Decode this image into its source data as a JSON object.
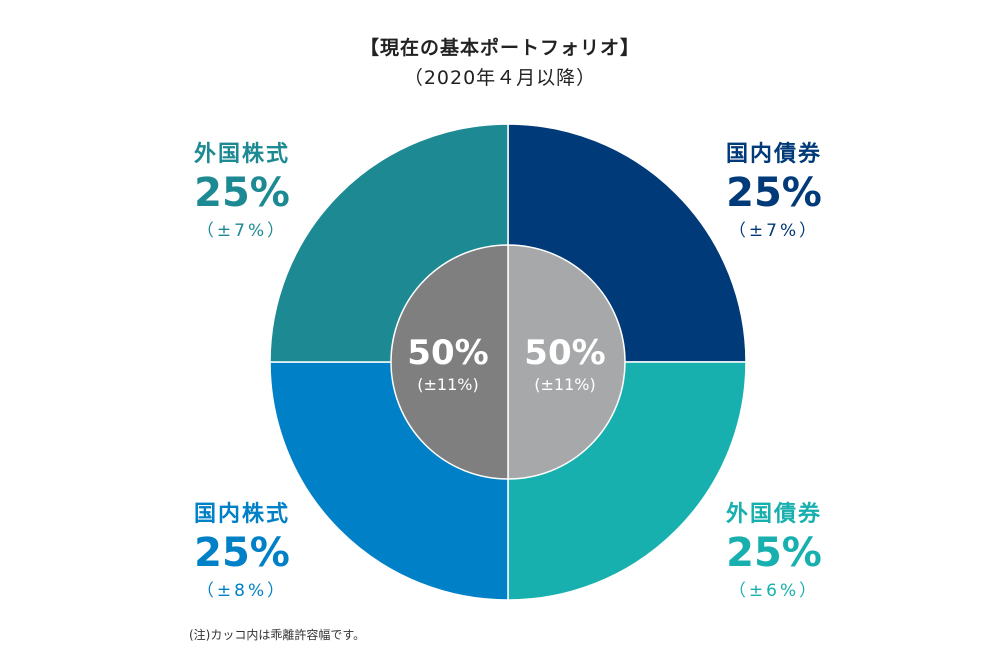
{
  "title": "【現在の基本ポートフォリオ】",
  "subtitle": "（2020年４月以降）",
  "note": "(注)カッコ内は乖離許容幅です。",
  "chart_data": {
    "type": "pie",
    "outer_ring": [
      {
        "name": "国内債券",
        "value": 25,
        "label": "25%",
        "range": "（±7%）",
        "color": "#003a78"
      },
      {
        "name": "外国債券",
        "value": 25,
        "label": "25%",
        "range": "（±6%）",
        "color": "#17b0ae"
      },
      {
        "name": "国内株式",
        "value": 25,
        "label": "25%",
        "range": "（±8%）",
        "color": "#0080c6"
      },
      {
        "name": "外国株式",
        "value": 25,
        "label": "25%",
        "range": "（±7%）",
        "color": "#1d8a93"
      }
    ],
    "inner_circle": [
      {
        "value": 50,
        "label": "50%",
        "range": "(±11%)",
        "color": "#a7a8aa"
      },
      {
        "value": 50,
        "label": "50%",
        "range": "(±11%)",
        "color": "#7f7f80"
      }
    ]
  }
}
